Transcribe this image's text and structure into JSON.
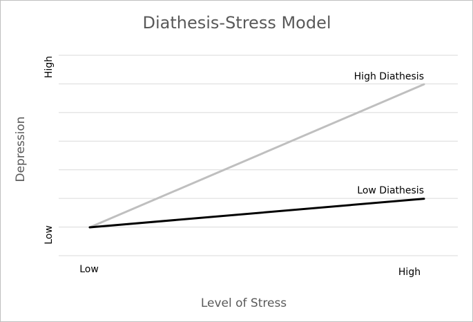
{
  "chart_data": {
    "type": "line",
    "title": "Diathesis-Stress Model",
    "xlabel": "Level of Stress",
    "ylabel": "Depression",
    "x_ticks": [
      "Low",
      "High"
    ],
    "y_ticks": [
      "Low",
      "High"
    ],
    "ylim": [
      0,
      6
    ],
    "grid": true,
    "gridline_count": 8,
    "series": [
      {
        "name": "High Diathesis",
        "values": [
          0,
          5
        ],
        "color": "#bfbfbf"
      },
      {
        "name": "Low Diathesis",
        "values": [
          0,
          1
        ],
        "color": "#000000"
      }
    ]
  }
}
